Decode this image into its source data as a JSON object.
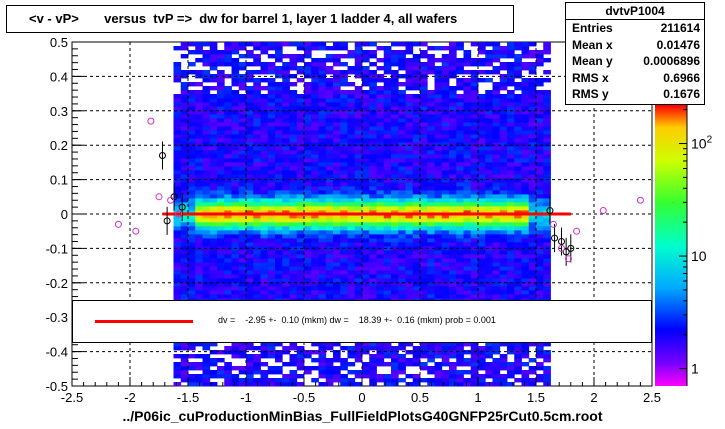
{
  "title": "<v - vP>       versus  tvP =>  dw for barrel 1, layer 1 ladder 4, all wafers",
  "stats": {
    "name": "dvtvP1004",
    "rows": [
      {
        "label": "Entries",
        "value": "211614"
      },
      {
        "label": "Mean x",
        "value": "0.01476"
      },
      {
        "label": "Mean y",
        "value": "0.0006896"
      },
      {
        "label": "RMS x",
        "value": "0.6966"
      },
      {
        "label": "RMS y",
        "value": "0.1676"
      }
    ]
  },
  "fit_text": "dv =    -2.95 +-  0.10 (mkm) dw =    18.39 +-  0.16 (mkm) prob = 0.001",
  "xtitle": "../P06ic_cuProductionMinBias_FullFieldPlotsG40GNFP25rCut0.5cm.root",
  "colors": {
    "fit": "#ff0000",
    "profile": "#000000",
    "profile2": "#cc33cc"
  },
  "chart_data": {
    "type": "heatmap",
    "xlim": [
      -2.5,
      2.5
    ],
    "ylim": [
      -0.5,
      0.5
    ],
    "x_ticks": [
      "-2.5",
      "-2",
      "-1.5",
      "-1",
      "-0.5",
      "0",
      "0.5",
      "1",
      "1.5",
      "2",
      "2.5"
    ],
    "y_ticks": [
      "-0.5",
      "-0.4",
      "-0.3",
      "-0.2",
      "-0.1",
      "0",
      "0.1",
      "0.2",
      "0.3",
      "0.4",
      "0.5"
    ],
    "z_scale": "log",
    "z_ticks": [
      "1",
      "10",
      "10^2"
    ],
    "grid": true,
    "fit_line": {
      "x": [
        -1.72,
        1.8
      ],
      "y": [
        0.0,
        0.0
      ]
    },
    "profile_points": [
      {
        "x": -1.72,
        "y": 0.17
      },
      {
        "x": -1.68,
        "y": -0.02
      },
      {
        "x": -1.62,
        "y": 0.05
      },
      {
        "x": -1.55,
        "y": 0.02
      },
      {
        "x": 1.62,
        "y": 0.01
      },
      {
        "x": 1.66,
        "y": -0.07
      },
      {
        "x": 1.72,
        "y": -0.08
      },
      {
        "x": 1.76,
        "y": -0.11
      },
      {
        "x": 1.8,
        "y": -0.1
      }
    ],
    "profile2_points": [
      {
        "x": -2.1,
        "y": -0.03
      },
      {
        "x": -1.95,
        "y": -0.05
      },
      {
        "x": -1.82,
        "y": 0.27
      },
      {
        "x": -1.75,
        "y": 0.05
      },
      {
        "x": -1.65,
        "y": 0.04
      },
      {
        "x": -1.58,
        "y": 0.0
      },
      {
        "x": 1.65,
        "y": -0.03
      },
      {
        "x": 1.72,
        "y": -0.1
      },
      {
        "x": 1.78,
        "y": -0.13
      },
      {
        "x": 1.85,
        "y": -0.05
      },
      {
        "x": 2.08,
        "y": 0.01
      },
      {
        "x": 2.4,
        "y": 0.04
      }
    ]
  }
}
